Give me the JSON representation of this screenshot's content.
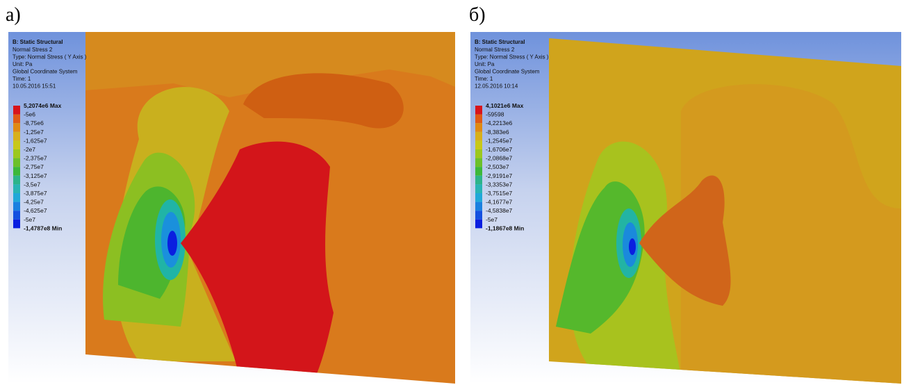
{
  "panels": [
    {
      "label": "а)",
      "header": {
        "title": "B: Static Structural",
        "lines": [
          "Normal Stress 2",
          "Type: Normal Stress ( Y Axis )",
          "Unit: Pa",
          "Global Coordinate System",
          "Time: 1",
          "10.05.2016 15:51"
        ]
      },
      "legend": [
        "5,2074e6 Max",
        "-5e6",
        "-8,75e6",
        "-1,25e7",
        "-1,625e7",
        "-2e7",
        "-2,375e7",
        "-2,75e7",
        "-3,125e7",
        "-3,5e7",
        "-3,875e7",
        "-4,25e7",
        "-4,625e7",
        "-5e7",
        "-1,4787e8 Min"
      ]
    },
    {
      "label": "б)",
      "header": {
        "title": "B: Static Structural",
        "lines": [
          "Normal Stress 2",
          "Type: Normal Stress ( Y Axis )",
          "Unit: Pa",
          "Global Coordinate System",
          "Time: 1",
          "12.05.2016 10:14"
        ]
      },
      "legend": [
        "4,1021e6 Max",
        "-59598",
        "-4,2213e6",
        "-8,383e6",
        "-1,2545e7",
        "-1,6706e7",
        "-2,0868e7",
        "-2,503e7",
        "-2,9191e7",
        "-3,3353e7",
        "-3,7515e7",
        "-4,1677e7",
        "-4,5838e7",
        "-5e7",
        "-1,1867e8 Min"
      ]
    }
  ]
}
